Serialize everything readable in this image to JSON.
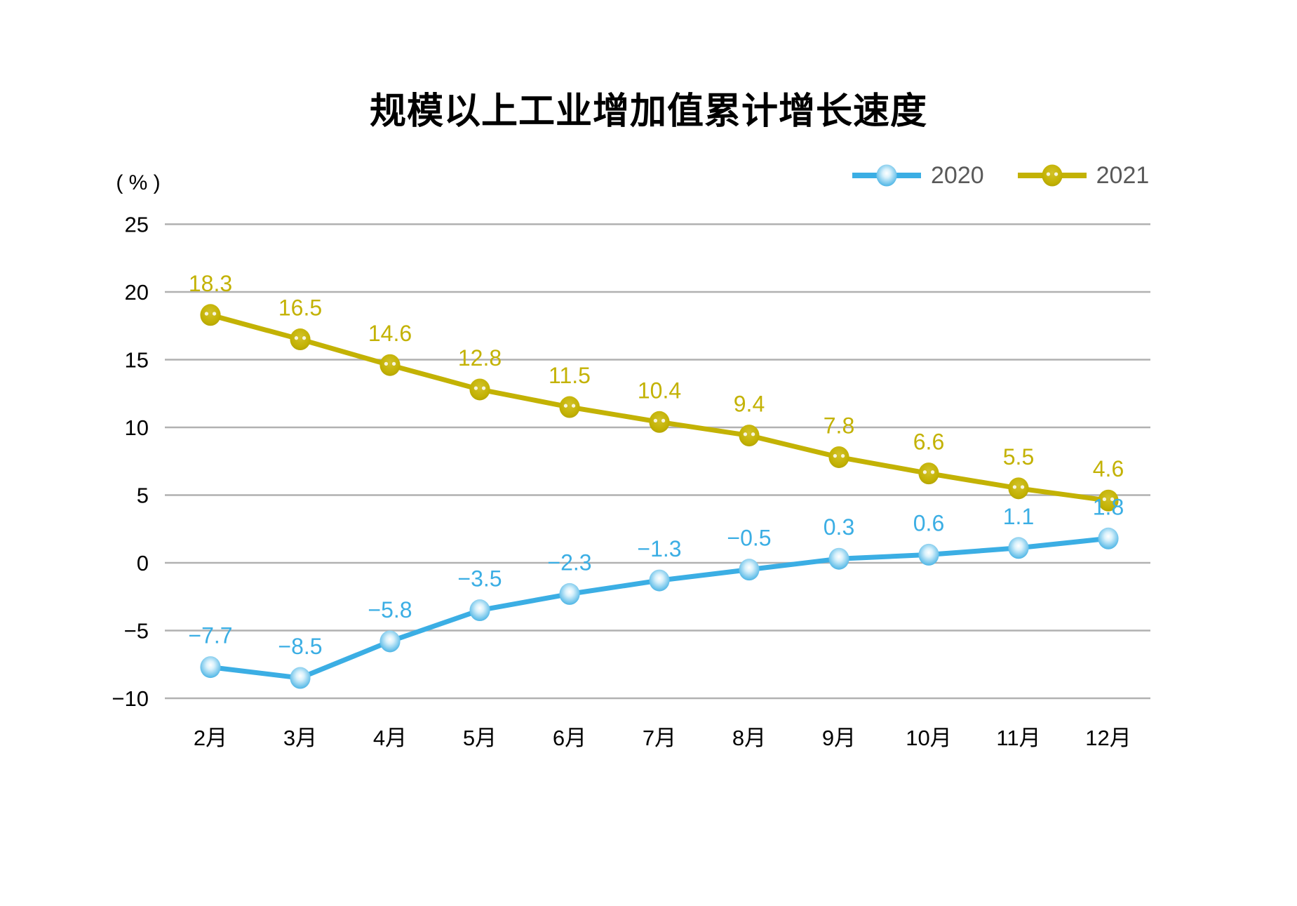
{
  "title": "规模以上工业增加值累计增长速度",
  "chart_data": {
    "type": "line",
    "title": "规模以上工业增加值累计增长速度",
    "ylabel": "( % )",
    "xlabel": "",
    "categories": [
      "2月",
      "3月",
      "4月",
      "5月",
      "6月",
      "7月",
      "8月",
      "9月",
      "10月",
      "11月",
      "12月"
    ],
    "series": [
      {
        "name": "2020",
        "color": "#3BAEE4",
        "values": [
          -7.7,
          -8.5,
          -5.8,
          -3.5,
          -2.3,
          -1.3,
          -0.5,
          0.3,
          0.6,
          1.1,
          1.8
        ]
      },
      {
        "name": "2021",
        "color": "#C3B204",
        "values": [
          18.3,
          16.5,
          14.6,
          12.8,
          11.5,
          10.4,
          9.4,
          7.8,
          6.6,
          5.5,
          4.6
        ]
      }
    ],
    "ylim": [
      -10,
      25
    ],
    "ytick_step": 5,
    "grid": "horizontal",
    "gridline_color": "#b1b1b1",
    "axis_text_color": "#000000",
    "legend_text_color": "#595959",
    "legend_position": "top-right",
    "data_labels": true,
    "background_color": "#ffffff"
  }
}
